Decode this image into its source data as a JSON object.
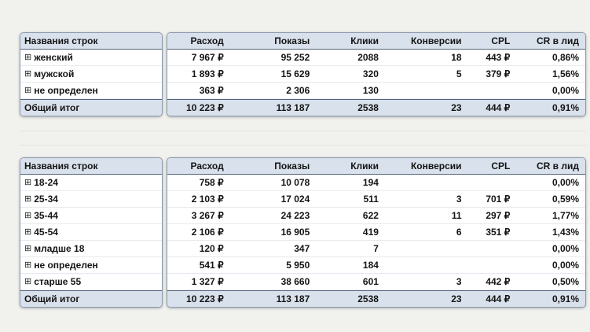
{
  "icons": {
    "expand": "⊞"
  },
  "colors": {
    "header_fill": "#d9e1ec",
    "strong_border": "#54647c",
    "page_bg": "#f1f1ee"
  },
  "tables": [
    {
      "name": "by-gender",
      "columns": [
        "Названия строк",
        "Расход",
        "Показы",
        "Клики",
        "Конверсии",
        "CPL",
        "CR в лид"
      ],
      "rows": [
        {
          "label": "женский",
          "values": [
            "7 967 ₽",
            "95 252",
            "2088",
            "18",
            "443 ₽",
            "0,86%"
          ]
        },
        {
          "label": "мужской",
          "values": [
            "1 893 ₽",
            "15 629",
            "320",
            "5",
            "379 ₽",
            "1,56%"
          ]
        },
        {
          "label": "не определен",
          "values": [
            "363 ₽",
            "2 306",
            "130",
            "",
            "",
            "0,00%"
          ]
        }
      ],
      "total": {
        "label": "Общий итог",
        "values": [
          "10 223 ₽",
          "113 187",
          "2538",
          "23",
          "444 ₽",
          "0,91%"
        ]
      }
    },
    {
      "name": "by-age",
      "columns": [
        "Названия строк",
        "Расход",
        "Показы",
        "Клики",
        "Конверсии",
        "CPL",
        "CR в лид"
      ],
      "rows": [
        {
          "label": "18-24",
          "values": [
            "758 ₽",
            "10 078",
            "194",
            "",
            "",
            "0,00%"
          ]
        },
        {
          "label": "25-34",
          "values": [
            "2 103 ₽",
            "17 024",
            "511",
            "3",
            "701 ₽",
            "0,59%"
          ]
        },
        {
          "label": "35-44",
          "values": [
            "3 267 ₽",
            "24 223",
            "622",
            "11",
            "297 ₽",
            "1,77%"
          ]
        },
        {
          "label": "45-54",
          "values": [
            "2 106 ₽",
            "16 905",
            "419",
            "6",
            "351 ₽",
            "1,43%"
          ]
        },
        {
          "label": "младше 18",
          "values": [
            "120 ₽",
            "347",
            "7",
            "",
            "",
            "0,00%"
          ]
        },
        {
          "label": "не определен",
          "values": [
            "541 ₽",
            "5 950",
            "184",
            "",
            "",
            "0,00%"
          ]
        },
        {
          "label": "старше 55",
          "values": [
            "1 327 ₽",
            "38 660",
            "601",
            "3",
            "442 ₽",
            "0,50%"
          ]
        }
      ],
      "total": {
        "label": "Общий итог",
        "values": [
          "10 223 ₽",
          "113 187",
          "2538",
          "23",
          "444 ₽",
          "0,91%"
        ]
      }
    }
  ]
}
